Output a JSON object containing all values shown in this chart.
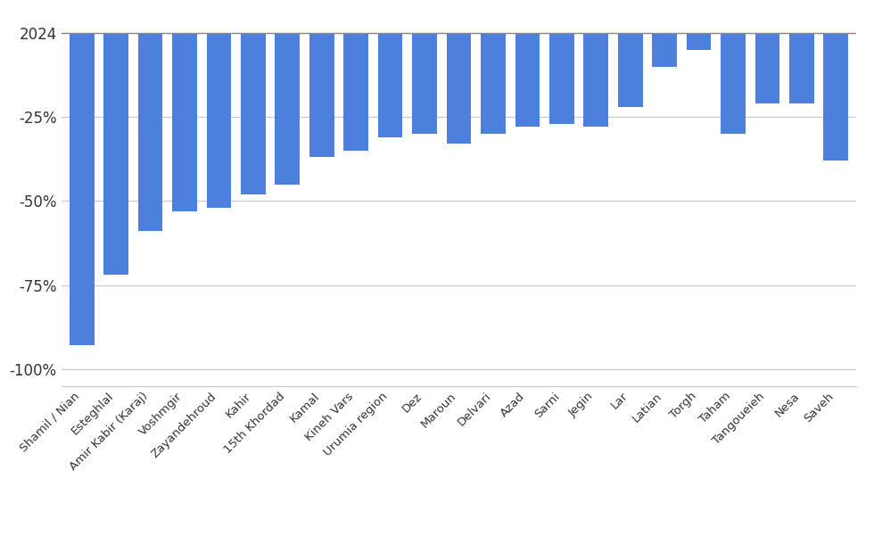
{
  "categories": [
    "Shamil / Nian",
    "Esteghlal",
    "Amir Kabir (Karaj)",
    "Voshmgir",
    "Zayandehroud",
    "Kahir",
    "15th Khordad",
    "Kamal",
    "Kineh Vars",
    "Urumia region",
    "Dez",
    "Maroun",
    "Delvari",
    "Azad",
    "Sarni",
    "Jegin",
    "Lar",
    "Latian",
    "Torgh",
    "Taham",
    "Tangoueieh",
    "Nesa",
    "Saveh"
  ],
  "values": [
    -93,
    -72,
    -59,
    -53,
    -52,
    -48,
    -45,
    -37,
    -35,
    -31,
    -30,
    -33,
    -30,
    -28,
    -27,
    -28,
    -22,
    -10,
    -5,
    -30,
    -21,
    -21,
    -38
  ],
  "bar_color": "#4d7fdc",
  "ylim": [
    -105,
    5
  ],
  "yticks": [
    0,
    -25,
    -50,
    -75,
    -100
  ],
  "ytick_labels": [
    "2024",
    "-25%",
    "-50%",
    "-75%",
    "-100%"
  ],
  "background_color": "#ffffff",
  "grid_color": "#c8c8c8",
  "hline_color": "#888888"
}
